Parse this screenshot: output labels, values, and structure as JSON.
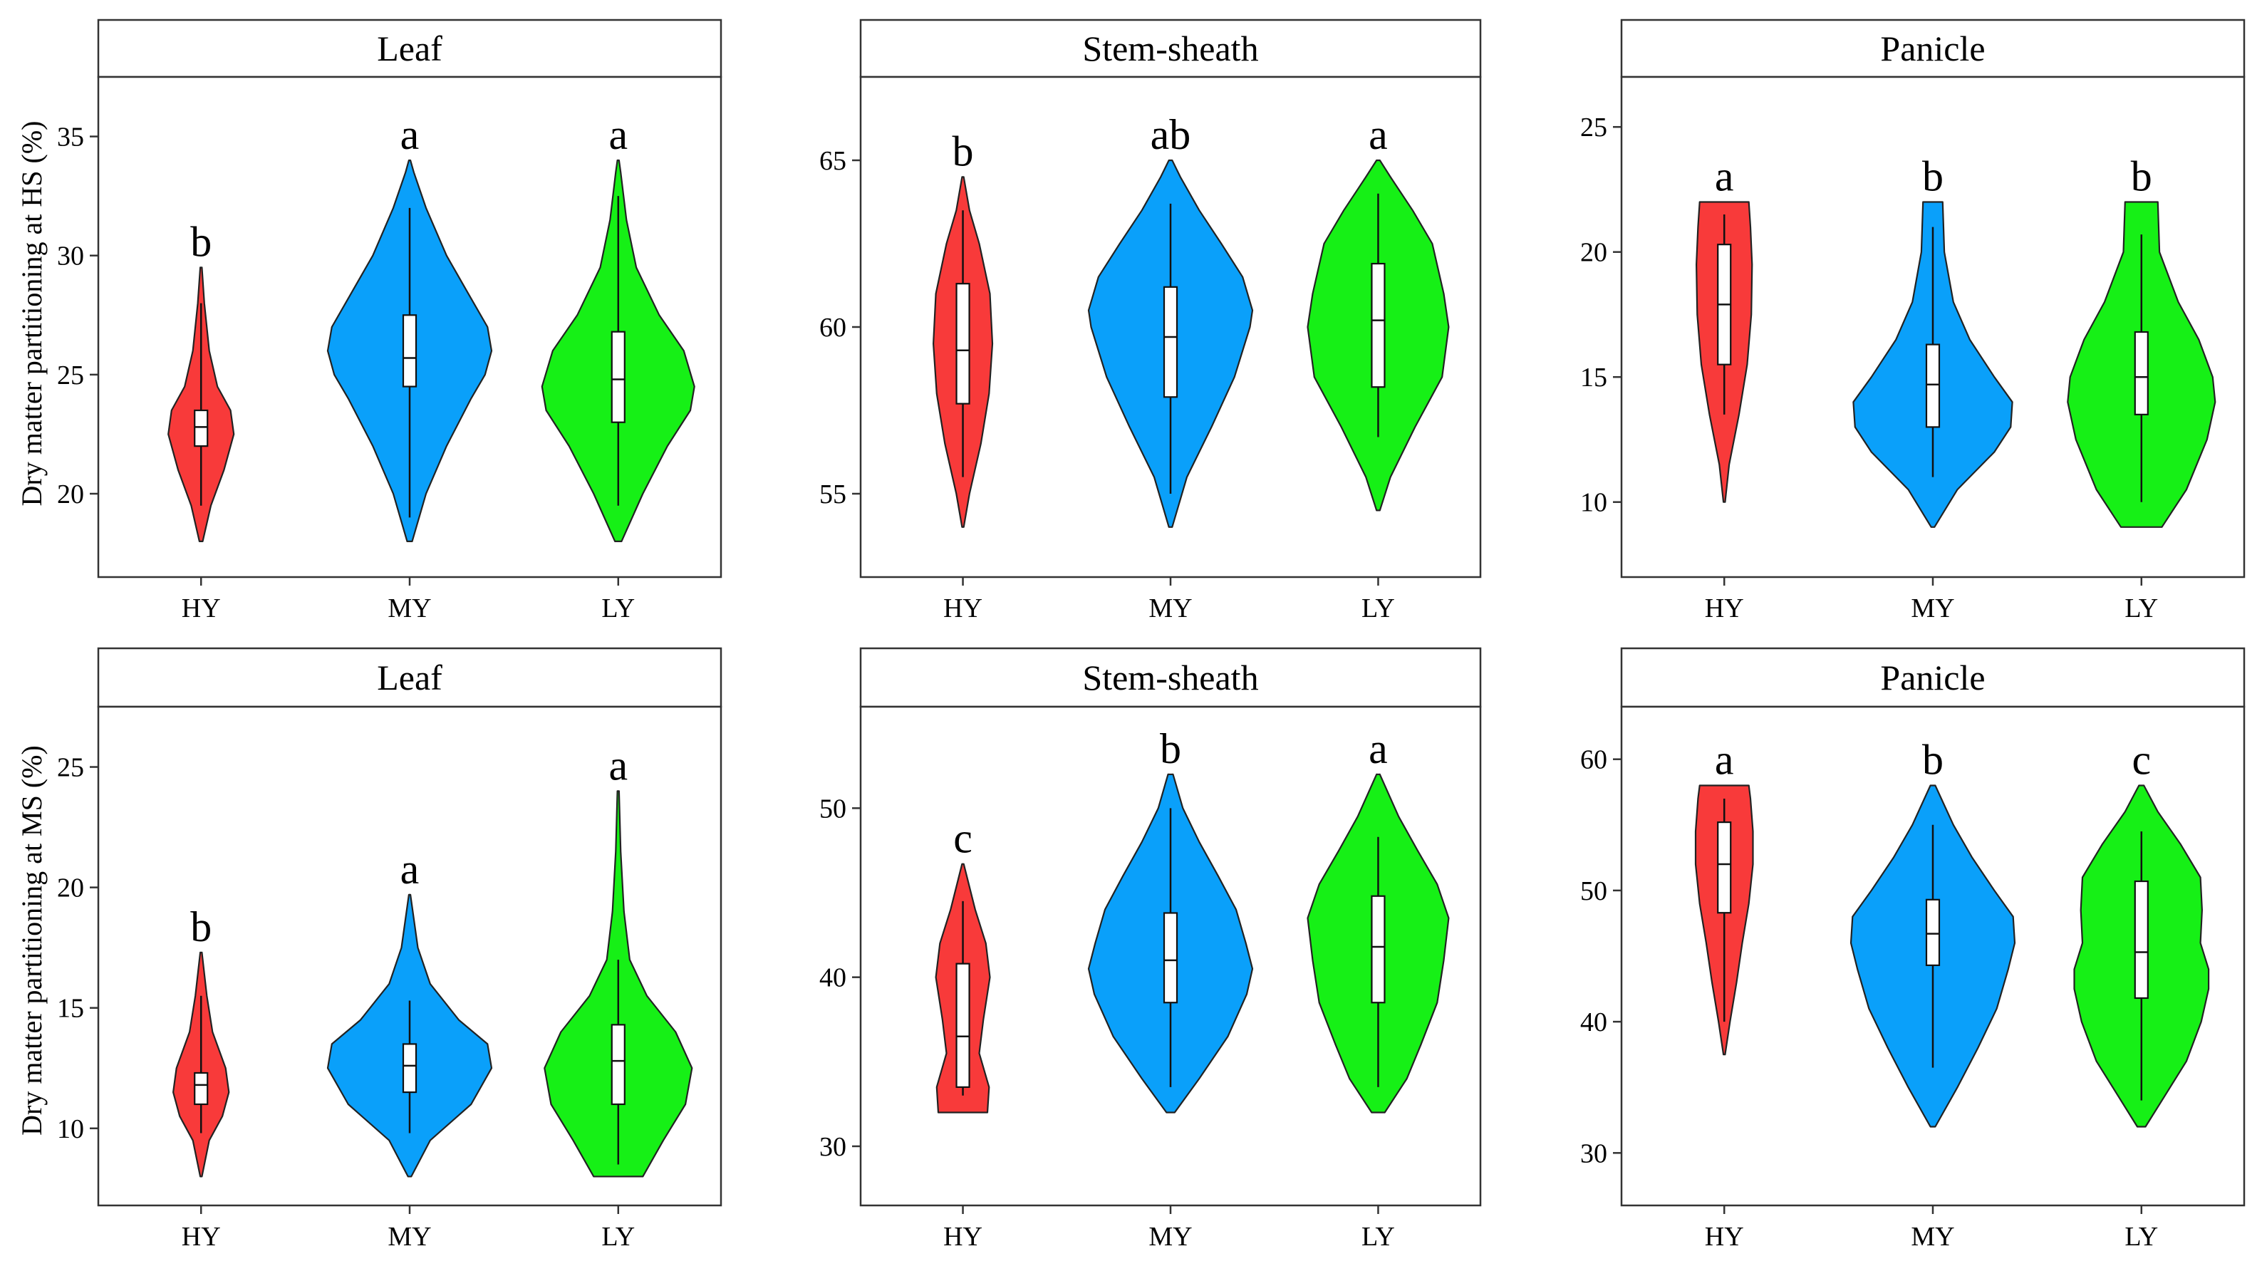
{
  "colors": {
    "HY": "#f83a3a",
    "MY": "#0aa0fa",
    "LY": "#16f016"
  },
  "chart_data": [
    {
      "type": "violin",
      "panel_title": "Leaf",
      "ylabel": "Dry matter partitioning at HS (%)",
      "categories": [
        "HY",
        "MY",
        "LY"
      ],
      "ylim": [
        16.5,
        37.5
      ],
      "yticks": [
        20,
        25,
        30,
        35
      ],
      "significance": [
        "b",
        "a",
        "a"
      ],
      "series": [
        {
          "name": "HY",
          "min": 18,
          "max": 29.5,
          "whisker_low": 19.5,
          "whisker_high": 28,
          "q1": 22,
          "median": 22.8,
          "q3": 23.5,
          "density": [
            [
              18,
              0.02
            ],
            [
              19.5,
              0.12
            ],
            [
              21,
              0.28
            ],
            [
              22.5,
              0.4
            ],
            [
              23.5,
              0.36
            ],
            [
              24.5,
              0.2
            ],
            [
              26,
              0.1
            ],
            [
              28,
              0.04
            ],
            [
              29.5,
              0.01
            ]
          ]
        },
        {
          "name": "MY",
          "min": 18,
          "max": 34,
          "whisker_low": 19,
          "whisker_high": 32,
          "q1": 24.5,
          "median": 25.7,
          "q3": 27.5,
          "density": [
            [
              18,
              0.03
            ],
            [
              20,
              0.2
            ],
            [
              22,
              0.45
            ],
            [
              24,
              0.75
            ],
            [
              25,
              0.92
            ],
            [
              26,
              1.0
            ],
            [
              27,
              0.95
            ],
            [
              28.5,
              0.7
            ],
            [
              30,
              0.45
            ],
            [
              32,
              0.2
            ],
            [
              33.5,
              0.05
            ],
            [
              34,
              0.01
            ]
          ]
        },
        {
          "name": "LY",
          "min": 18,
          "max": 34,
          "whisker_low": 19.5,
          "whisker_high": 32.5,
          "q1": 23,
          "median": 24.8,
          "q3": 26.8,
          "density": [
            [
              18,
              0.04
            ],
            [
              20,
              0.3
            ],
            [
              22,
              0.6
            ],
            [
              23.5,
              0.88
            ],
            [
              24.5,
              0.93
            ],
            [
              26,
              0.8
            ],
            [
              27.5,
              0.5
            ],
            [
              29.5,
              0.22
            ],
            [
              31.5,
              0.1
            ],
            [
              33.5,
              0.03
            ],
            [
              34,
              0.01
            ]
          ]
        }
      ]
    },
    {
      "type": "violin",
      "panel_title": "Stem-sheath",
      "ylabel": "",
      "categories": [
        "HY",
        "MY",
        "LY"
      ],
      "ylim": [
        52.5,
        67.5
      ],
      "yticks": [
        55,
        60,
        65
      ],
      "significance": [
        "b",
        "ab",
        "a"
      ],
      "series": [
        {
          "name": "HY",
          "min": 54,
          "max": 64.5,
          "whisker_low": 55.5,
          "whisker_high": 63.5,
          "q1": 57.7,
          "median": 59.3,
          "q3": 61.3,
          "density": [
            [
              54,
              0.01
            ],
            [
              55,
              0.08
            ],
            [
              56.5,
              0.22
            ],
            [
              58,
              0.32
            ],
            [
              59.5,
              0.36
            ],
            [
              61,
              0.33
            ],
            [
              62.5,
              0.2
            ],
            [
              63.5,
              0.08
            ],
            [
              64.5,
              0.01
            ]
          ]
        },
        {
          "name": "MY",
          "min": 54,
          "max": 65,
          "whisker_low": 55,
          "whisker_high": 63.7,
          "q1": 57.9,
          "median": 59.7,
          "q3": 61.2,
          "density": [
            [
              54,
              0.02
            ],
            [
              55.5,
              0.2
            ],
            [
              57,
              0.5
            ],
            [
              58.5,
              0.78
            ],
            [
              60,
              0.97
            ],
            [
              60.5,
              1.0
            ],
            [
              61.5,
              0.88
            ],
            [
              62.5,
              0.62
            ],
            [
              63.5,
              0.35
            ],
            [
              64.5,
              0.12
            ],
            [
              65,
              0.02
            ]
          ]
        },
        {
          "name": "LY",
          "min": 54.5,
          "max": 65,
          "whisker_low": 56.7,
          "whisker_high": 64,
          "q1": 58.2,
          "median": 60.2,
          "q3": 61.9,
          "density": [
            [
              54.5,
              0.02
            ],
            [
              55.5,
              0.15
            ],
            [
              57,
              0.45
            ],
            [
              58.5,
              0.78
            ],
            [
              60,
              0.86
            ],
            [
              61,
              0.8
            ],
            [
              62.5,
              0.66
            ],
            [
              63.5,
              0.42
            ],
            [
              64.5,
              0.15
            ],
            [
              65,
              0.02
            ]
          ]
        }
      ]
    },
    {
      "type": "violin",
      "panel_title": "Panicle",
      "ylabel": "",
      "categories": [
        "HY",
        "MY",
        "LY"
      ],
      "ylim": [
        7,
        27
      ],
      "yticks": [
        10,
        15,
        20,
        25
      ],
      "significance": [
        "a",
        "b",
        "b"
      ],
      "series": [
        {
          "name": "HY",
          "min": 10,
          "max": 22,
          "whisker_low": 13.5,
          "whisker_high": 21.5,
          "q1": 15.5,
          "median": 17.9,
          "q3": 20.3,
          "density": [
            [
              10,
              0.01
            ],
            [
              11.5,
              0.06
            ],
            [
              13.5,
              0.18
            ],
            [
              15.5,
              0.28
            ],
            [
              17.5,
              0.33
            ],
            [
              19.5,
              0.34
            ],
            [
              21,
              0.32
            ],
            [
              22,
              0.3
            ]
          ]
        },
        {
          "name": "MY",
          "min": 9,
          "max": 22,
          "whisker_low": 11,
          "whisker_high": 21,
          "q1": 13,
          "median": 14.7,
          "q3": 16.3,
          "density": [
            [
              9,
              0.02
            ],
            [
              10.5,
              0.3
            ],
            [
              12,
              0.75
            ],
            [
              13,
              0.95
            ],
            [
              14,
              0.97
            ],
            [
              15,
              0.75
            ],
            [
              16.5,
              0.45
            ],
            [
              18,
              0.25
            ],
            [
              20,
              0.14
            ],
            [
              22,
              0.12
            ]
          ]
        },
        {
          "name": "LY",
          "min": 9,
          "max": 22,
          "whisker_low": 10,
          "whisker_high": 20.7,
          "q1": 13.5,
          "median": 15,
          "q3": 16.8,
          "density": [
            [
              9,
              0.25
            ],
            [
              10.5,
              0.55
            ],
            [
              12.5,
              0.8
            ],
            [
              14,
              0.9
            ],
            [
              15,
              0.87
            ],
            [
              16.5,
              0.7
            ],
            [
              18,
              0.45
            ],
            [
              20,
              0.22
            ],
            [
              22,
              0.2
            ]
          ]
        }
      ]
    },
    {
      "type": "violin",
      "panel_title": "Leaf",
      "ylabel": "Dry matter partitioning at MS (%)",
      "categories": [
        "HY",
        "MY",
        "LY"
      ],
      "ylim": [
        6.8,
        27.5
      ],
      "yticks": [
        10,
        15,
        20,
        25
      ],
      "significance": [
        "b",
        "a",
        "a"
      ],
      "series": [
        {
          "name": "HY",
          "min": 8,
          "max": 17.3,
          "whisker_low": 9.8,
          "whisker_high": 15.5,
          "q1": 11,
          "median": 11.8,
          "q3": 12.3,
          "density": [
            [
              8,
              0.01
            ],
            [
              9.5,
              0.1
            ],
            [
              10.5,
              0.26
            ],
            [
              11.5,
              0.34
            ],
            [
              12.5,
              0.3
            ],
            [
              14,
              0.14
            ],
            [
              15.5,
              0.07
            ],
            [
              17.3,
              0.01
            ]
          ]
        },
        {
          "name": "MY",
          "min": 8,
          "max": 19.7,
          "whisker_low": 9.8,
          "whisker_high": 15.3,
          "q1": 11.5,
          "median": 12.6,
          "q3": 13.5,
          "density": [
            [
              8,
              0.02
            ],
            [
              9.5,
              0.25
            ],
            [
              11,
              0.75
            ],
            [
              12.5,
              1.0
            ],
            [
              13.5,
              0.95
            ],
            [
              14.5,
              0.6
            ],
            [
              16,
              0.25
            ],
            [
              17.5,
              0.1
            ],
            [
              19.7,
              0.01
            ]
          ]
        },
        {
          "name": "LY",
          "min": 8,
          "max": 24,
          "whisker_low": 8.5,
          "whisker_high": 17,
          "q1": 11,
          "median": 12.8,
          "q3": 14.3,
          "density": [
            [
              8,
              0.3
            ],
            [
              9.5,
              0.55
            ],
            [
              11,
              0.82
            ],
            [
              12.5,
              0.9
            ],
            [
              14,
              0.7
            ],
            [
              15.5,
              0.35
            ],
            [
              17,
              0.14
            ],
            [
              19,
              0.07
            ],
            [
              21.5,
              0.03
            ],
            [
              24,
              0.01
            ]
          ]
        }
      ]
    },
    {
      "type": "violin",
      "panel_title": "Stem-sheath",
      "ylabel": "",
      "categories": [
        "HY",
        "MY",
        "LY"
      ],
      "ylim": [
        26.5,
        56
      ],
      "yticks": [
        30,
        40,
        50
      ],
      "significance": [
        "c",
        "b",
        "a"
      ],
      "series": [
        {
          "name": "HY",
          "min": 32,
          "max": 46.7,
          "whisker_low": 33,
          "whisker_high": 44.5,
          "q1": 33.5,
          "median": 36.5,
          "q3": 40.8,
          "density": [
            [
              32,
              0.3
            ],
            [
              33.5,
              0.32
            ],
            [
              35.5,
              0.2
            ],
            [
              37.5,
              0.25
            ],
            [
              40,
              0.33
            ],
            [
              42,
              0.28
            ],
            [
              44,
              0.15
            ],
            [
              46.7,
              0.01
            ]
          ]
        },
        {
          "name": "MY",
          "min": 32,
          "max": 52,
          "whisker_low": 33.5,
          "whisker_high": 50,
          "q1": 38.5,
          "median": 41,
          "q3": 43.8,
          "density": [
            [
              32,
              0.05
            ],
            [
              34,
              0.35
            ],
            [
              36.5,
              0.7
            ],
            [
              39,
              0.93
            ],
            [
              40.5,
              1.0
            ],
            [
              42,
              0.92
            ],
            [
              44,
              0.8
            ],
            [
              46,
              0.58
            ],
            [
              48,
              0.35
            ],
            [
              50,
              0.15
            ],
            [
              52,
              0.03
            ]
          ]
        },
        {
          "name": "LY",
          "min": 32,
          "max": 52,
          "whisker_low": 33.5,
          "whisker_high": 48.3,
          "q1": 38.5,
          "median": 41.8,
          "q3": 44.8,
          "density": [
            [
              32,
              0.08
            ],
            [
              34,
              0.35
            ],
            [
              36,
              0.52
            ],
            [
              38.5,
              0.72
            ],
            [
              41,
              0.8
            ],
            [
              43.5,
              0.86
            ],
            [
              45.5,
              0.72
            ],
            [
              47.5,
              0.48
            ],
            [
              49.5,
              0.25
            ],
            [
              52,
              0.02
            ]
          ]
        }
      ]
    },
    {
      "type": "violin",
      "panel_title": "Panicle",
      "ylabel": "",
      "categories": [
        "HY",
        "MY",
        "LY"
      ],
      "ylim": [
        26,
        64
      ],
      "yticks": [
        30,
        40,
        50,
        60
      ],
      "significance": [
        "a",
        "b",
        "c"
      ],
      "series": [
        {
          "name": "HY",
          "min": 37.5,
          "max": 58,
          "whisker_low": 40,
          "whisker_high": 57,
          "q1": 48.3,
          "median": 52,
          "q3": 55.2,
          "density": [
            [
              37.5,
              0.01
            ],
            [
              40,
              0.07
            ],
            [
              43,
              0.15
            ],
            [
              46,
              0.22
            ],
            [
              49,
              0.3
            ],
            [
              52,
              0.35
            ],
            [
              54.5,
              0.35
            ],
            [
              57,
              0.32
            ],
            [
              58,
              0.3
            ]
          ]
        },
        {
          "name": "MY",
          "min": 32,
          "max": 58,
          "whisker_low": 36.5,
          "whisker_high": 55,
          "q1": 44.3,
          "median": 46.7,
          "q3": 49.3,
          "density": [
            [
              32,
              0.03
            ],
            [
              35,
              0.3
            ],
            [
              38,
              0.55
            ],
            [
              41,
              0.78
            ],
            [
              44,
              0.92
            ],
            [
              46,
              1.0
            ],
            [
              48,
              0.98
            ],
            [
              50,
              0.75
            ],
            [
              52.5,
              0.48
            ],
            [
              55,
              0.25
            ],
            [
              58,
              0.03
            ]
          ]
        },
        {
          "name": "LY",
          "min": 32,
          "max": 58,
          "whisker_low": 34,
          "whisker_high": 54.5,
          "q1": 41.8,
          "median": 45.3,
          "q3": 50.7,
          "density": [
            [
              32,
              0.05
            ],
            [
              34.5,
              0.3
            ],
            [
              37,
              0.55
            ],
            [
              40,
              0.73
            ],
            [
              42.5,
              0.82
            ],
            [
              44,
              0.82
            ],
            [
              46,
              0.72
            ],
            [
              48.5,
              0.74
            ],
            [
              51,
              0.72
            ],
            [
              53.5,
              0.48
            ],
            [
              56,
              0.2
            ],
            [
              58,
              0.03
            ]
          ]
        }
      ]
    }
  ]
}
